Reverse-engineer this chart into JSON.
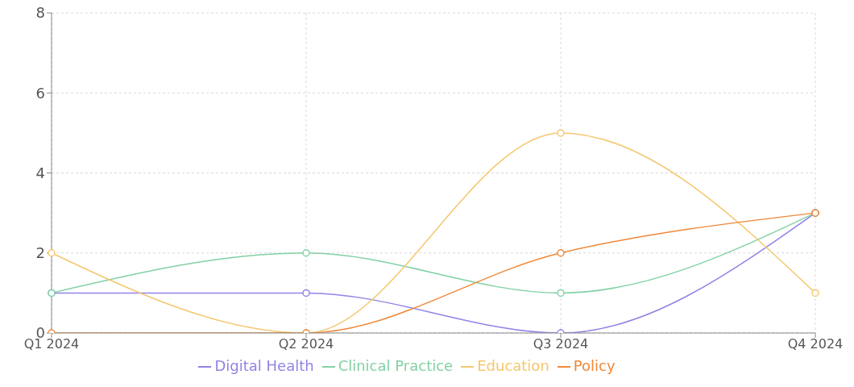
{
  "chart_data": {
    "type": "line",
    "categories": [
      "Q1 2024",
      "Q2 2024",
      "Q3 2024",
      "Q4 2024"
    ],
    "series": [
      {
        "name": "Digital Health",
        "color": "#8f84e6",
        "values": [
          1,
          1,
          0,
          3
        ]
      },
      {
        "name": "Clinical Practice",
        "color": "#82d1a4",
        "values": [
          1,
          2,
          1,
          3
        ]
      },
      {
        "name": "Education",
        "color": "#f4c76e",
        "values": [
          2,
          0,
          5,
          1
        ]
      },
      {
        "name": "Policy",
        "color": "#f08838",
        "values": [
          0,
          0,
          2,
          3
        ]
      }
    ],
    "ylim": [
      0,
      8
    ],
    "yticks": [
      0,
      2,
      4,
      6,
      8
    ],
    "grid": true,
    "legend": "bottom",
    "marker": "circle",
    "line_style": "solid"
  }
}
